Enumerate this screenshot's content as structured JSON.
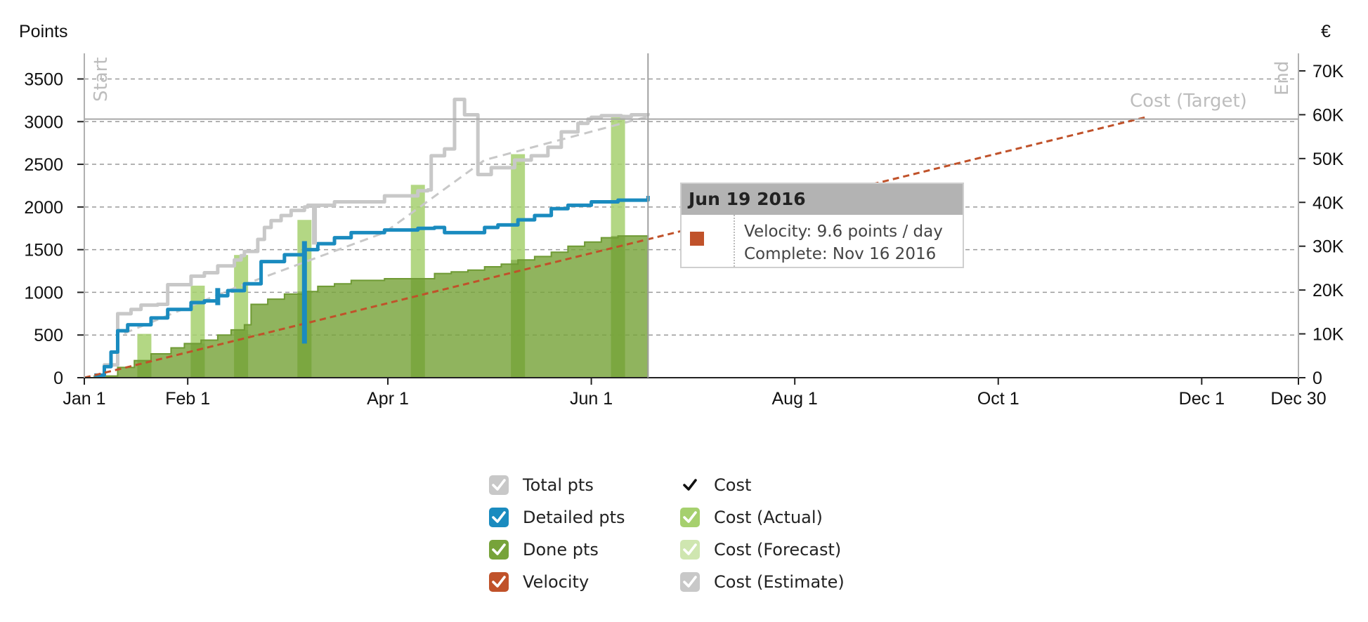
{
  "chart_data": {
    "type": "line",
    "left_axis_label": "Points",
    "right_axis_label": "€",
    "x_ticks": [
      "Jan 1",
      "Feb 1",
      "Apr 1",
      "Jun 1",
      "Aug 1",
      "Oct 1",
      "Dec 1",
      "Dec 30"
    ],
    "x_tick_days": [
      0,
      31,
      91,
      152,
      213,
      274,
      335,
      364
    ],
    "x_domain_days": [
      0,
      364
    ],
    "ylim_left": [
      0,
      3800
    ],
    "ylim_right": [
      0,
      74000
    ],
    "y_ticks_left": [
      0,
      500,
      1000,
      1500,
      2000,
      2500,
      3000,
      3500
    ],
    "y_ticks_right": [
      0,
      10000,
      20000,
      30000,
      40000,
      50000,
      60000,
      70000
    ],
    "y_tick_labels_right": [
      "0",
      "10K",
      "20K",
      "30K",
      "40K",
      "50K",
      "60K",
      "70K"
    ],
    "grid": "horizontal dashed",
    "markers": {
      "start_label": "Start",
      "end_label": "End",
      "today_day": 169,
      "cost_target_label": "Cost (Target)",
      "cost_target_value": 59000
    },
    "series": [
      {
        "name": "Total pts",
        "color": "#c8c8c8",
        "x_days": [
          3,
          6,
          10,
          10,
          14,
          17,
          22,
          25,
          25,
          32,
          36,
          40,
          45,
          47,
          48,
          52,
          54,
          56,
          59,
          62,
          66,
          67,
          75,
          90,
          100,
          103,
          104,
          108,
          111,
          111,
          114,
          118,
          122,
          129,
          134,
          139,
          143,
          148,
          151,
          152,
          155,
          161,
          164,
          169
        ],
        "values": [
          30,
          150,
          600,
          750,
          800,
          850,
          860,
          1000,
          1090,
          1190,
          1230,
          1310,
          1380,
          1430,
          1480,
          1620,
          1760,
          1840,
          1900,
          1960,
          2000,
          2020,
          2060,
          2130,
          2190,
          2200,
          2600,
          2680,
          3170,
          3260,
          3080,
          2380,
          2460,
          2550,
          2600,
          2700,
          2880,
          2980,
          3030,
          3050,
          3070,
          3060,
          3080,
          3100
        ]
      },
      {
        "name": "Total pts (projection)",
        "color": "#c8c8c8",
        "dashed": true,
        "x_days": [
          12,
          45,
          90,
          120,
          169
        ],
        "values": [
          520,
          1050,
          1700,
          2550,
          3060
        ]
      },
      {
        "name": "Detailed pts",
        "color": "#1a8bbf",
        "x_days": [
          3,
          6,
          8,
          10,
          13,
          20,
          25,
          32,
          36,
          40,
          43,
          48,
          53,
          60,
          66,
          70,
          75,
          80,
          90,
          100,
          105,
          108,
          115,
          120,
          124,
          130,
          135,
          140,
          145,
          152,
          160,
          169
        ],
        "values": [
          30,
          130,
          300,
          550,
          620,
          700,
          800,
          880,
          900,
          960,
          1020,
          1100,
          1360,
          1440,
          1500,
          1570,
          1640,
          1700,
          1730,
          1750,
          1760,
          1700,
          1700,
          1760,
          1790,
          1850,
          1900,
          1980,
          2020,
          2060,
          2080,
          2130
        ]
      },
      {
        "name": "Done pts",
        "color": "#77a33a",
        "area": true,
        "x_days": [
          3,
          10,
          15,
          20,
          26,
          30,
          35,
          40,
          44,
          48,
          50,
          55,
          60,
          66,
          70,
          75,
          80,
          90,
          100,
          105,
          110,
          115,
          120,
          125,
          130,
          135,
          140,
          145,
          150,
          155,
          160,
          169
        ],
        "values": [
          20,
          120,
          200,
          280,
          350,
          400,
          440,
          500,
          560,
          620,
          860,
          920,
          980,
          1010,
          1070,
          1100,
          1140,
          1160,
          1160,
          1220,
          1240,
          1260,
          1300,
          1330,
          1380,
          1420,
          1470,
          1540,
          1590,
          1640,
          1660,
          1640
        ]
      },
      {
        "name": "Velocity",
        "color": "#c0522a",
        "dashed": true,
        "x_days": [
          0,
          169,
          318
        ],
        "values": [
          0,
          1622,
          3050
        ]
      }
    ],
    "cost_actual_bars": {
      "name": "Cost (Actual)",
      "color": "#a6d06e",
      "x_days": [
        18,
        34,
        47,
        66,
        100,
        130,
        160
      ],
      "values": [
        10000,
        21000,
        28000,
        36000,
        44000,
        51000,
        60000
      ]
    },
    "cost_spikes": [
      {
        "series": "Detailed pts",
        "x_day": 66,
        "from": 400,
        "to": 1600
      },
      {
        "series": "Detailed pts",
        "x_day": 40,
        "from": 850,
        "to": 1050
      },
      {
        "series": "Total pts",
        "x_day": 69,
        "from": 1560,
        "to": 2020
      }
    ]
  },
  "tooltip": {
    "date": "Jun 19 2016",
    "velocity": "Velocity: 9.6 points / day",
    "complete": "Complete: Nov 16 2016",
    "swatch_color": "#c0522a"
  },
  "legend": {
    "items": [
      {
        "label": "Total pts",
        "color": "#c8c8c8",
        "checkmark": "white"
      },
      {
        "label": "Detailed pts",
        "color": "#1a8bbf",
        "checkmark": "white"
      },
      {
        "label": "Done pts",
        "color": "#77a33a",
        "checkmark": "white"
      },
      {
        "label": "Velocity",
        "color": "#c0522a",
        "checkmark": "white"
      },
      {
        "label": "Cost",
        "color": "#ffffff",
        "checkmark": "black"
      },
      {
        "label": "Cost (Actual)",
        "color": "#a6d06e",
        "checkmark": "white"
      },
      {
        "label": "Cost (Forecast)",
        "color": "#cfe6b0",
        "checkmark": "white"
      },
      {
        "label": "Cost (Estimate)",
        "color": "#c8c8c8",
        "checkmark": "white"
      }
    ]
  }
}
